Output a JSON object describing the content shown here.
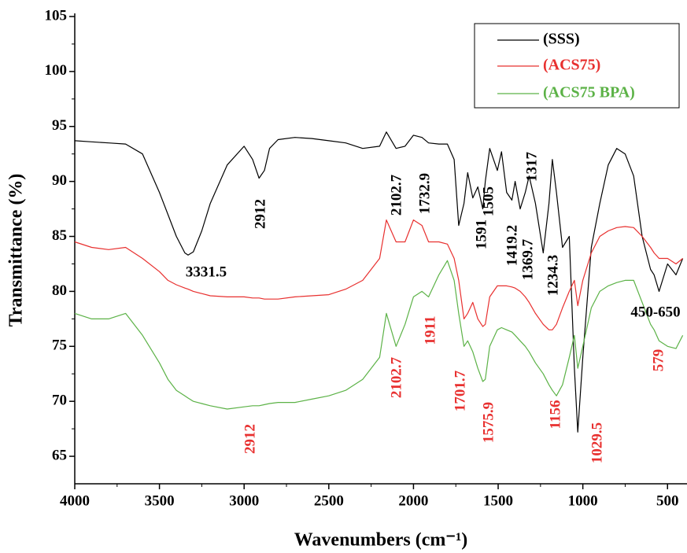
{
  "chart_data": {
    "type": "line",
    "xlabel": "Wavenumbers (cm⁻¹)",
    "ylabel": "Transmittance (%)",
    "xlim": [
      4000,
      385
    ],
    "ylim": [
      62.5,
      105
    ],
    "xticks": [
      4000,
      3500,
      3000,
      2500,
      2000,
      1500,
      1000,
      500
    ],
    "yticks": [
      65,
      70,
      75,
      80,
      85,
      90,
      95,
      100,
      105
    ],
    "legend": "top-right",
    "x": [
      4000,
      3900,
      3800,
      3700,
      3600,
      3500,
      3450,
      3400,
      3350,
      3331,
      3300,
      3250,
      3200,
      3100,
      3000,
      2950,
      2912,
      2880,
      2850,
      2800,
      2700,
      2600,
      2500,
      2400,
      2300,
      2200,
      2160,
      2103,
      2050,
      2000,
      1950,
      1911,
      1850,
      1800,
      1760,
      1733,
      1702,
      1680,
      1650,
      1620,
      1591,
      1576,
      1550,
      1505,
      1480,
      1450,
      1419,
      1400,
      1370,
      1340,
      1317,
      1280,
      1234,
      1200,
      1180,
      1156,
      1120,
      1080,
      1050,
      1030,
      1000,
      950,
      900,
      850,
      800,
      750,
      700,
      650,
      600,
      579,
      550,
      500,
      450,
      410
    ],
    "series": [
      {
        "name": "(SSS)",
        "color": "#000000",
        "values": [
          93.7,
          93.6,
          93.5,
          93.4,
          92.5,
          89,
          87,
          85,
          83.5,
          83.3,
          83.6,
          85.5,
          88,
          91.5,
          93.2,
          92,
          90.3,
          91,
          93,
          93.8,
          94,
          93.9,
          93.7,
          93.5,
          93,
          93.2,
          94.5,
          93,
          93.2,
          94.2,
          94,
          93.5,
          93.4,
          93.4,
          92,
          86,
          88,
          90.8,
          88.5,
          89.5,
          87.5,
          90,
          93,
          91,
          92.7,
          89,
          88.3,
          90,
          87.5,
          89,
          90.5,
          88,
          83.5,
          88,
          92,
          89,
          84,
          85,
          73,
          67.2,
          74,
          84,
          88,
          91.5,
          93,
          92.5,
          90.5,
          85,
          82,
          81.5,
          80,
          82.5,
          81.5,
          83
        ]
      },
      {
        "name": "(ACS75)",
        "color": "#e8302f",
        "values": [
          84.5,
          84,
          83.8,
          84,
          83,
          81.8,
          81,
          80.6,
          80.3,
          80.2,
          80,
          79.8,
          79.6,
          79.5,
          79.5,
          79.4,
          79.4,
          79.3,
          79.3,
          79.3,
          79.5,
          79.6,
          79.7,
          80.2,
          81,
          83,
          86.5,
          84.5,
          84.5,
          86.5,
          86,
          84.5,
          84.5,
          84.3,
          83,
          81,
          77.5,
          78,
          79,
          77.5,
          76.8,
          77,
          79.5,
          80.5,
          80.5,
          80.5,
          80.4,
          80.3,
          80,
          79.5,
          79,
          78,
          77,
          76.5,
          76.5,
          77,
          78.5,
          80,
          81,
          78.7,
          81,
          83.5,
          85,
          85.5,
          85.8,
          85.9,
          85.8,
          85,
          84,
          83.5,
          83,
          83,
          82.5,
          83
        ]
      },
      {
        "name": "(ACS75 BPA)",
        "color": "#5cb247",
        "values": [
          78,
          77.5,
          77.5,
          78,
          76,
          73.5,
          72,
          71,
          70.5,
          70.3,
          70,
          69.8,
          69.6,
          69.3,
          69.5,
          69.6,
          69.6,
          69.7,
          69.8,
          69.9,
          69.9,
          70.2,
          70.5,
          71,
          72,
          74,
          78,
          75,
          77,
          79.5,
          80,
          79.5,
          81.5,
          82.8,
          81,
          78,
          75,
          75.5,
          74.5,
          73,
          71.8,
          72,
          75,
          76.5,
          76.7,
          76.5,
          76.3,
          76,
          75.5,
          75,
          74.5,
          73.5,
          72.5,
          71.5,
          71,
          70.5,
          71.5,
          74,
          76,
          73,
          75,
          78.5,
          80,
          80.5,
          80.8,
          81,
          81,
          79,
          77,
          76.5,
          75.5,
          75,
          74.8,
          76
        ]
      }
    ],
    "annotations": [
      {
        "text": "3331.5",
        "color": "#000000"
      },
      {
        "text": "2912",
        "color": "#000000"
      },
      {
        "text": "2102.7",
        "color": "#000000"
      },
      {
        "text": "1732.9",
        "color": "#000000"
      },
      {
        "text": "1591",
        "color": "#000000"
      },
      {
        "text": "1505",
        "color": "#000000"
      },
      {
        "text": "1419.2",
        "color": "#000000"
      },
      {
        "text": "1369.7",
        "color": "#000000"
      },
      {
        "text": "1317",
        "color": "#000000"
      },
      {
        "text": "1234.3",
        "color": "#000000"
      },
      {
        "text": "450-650",
        "color": "#000000"
      },
      {
        "text": "1911",
        "color": "#e8302f"
      },
      {
        "text": "2102.7",
        "color": "#e8302f"
      },
      {
        "text": "2912",
        "color": "#e8302f"
      },
      {
        "text": "1701.7",
        "color": "#e8302f"
      },
      {
        "text": "1575.9",
        "color": "#e8302f"
      },
      {
        "text": "1156",
        "color": "#e8302f"
      },
      {
        "text": "1029.5",
        "color": "#e8302f"
      },
      {
        "text": "579",
        "color": "#e8302f"
      }
    ]
  }
}
